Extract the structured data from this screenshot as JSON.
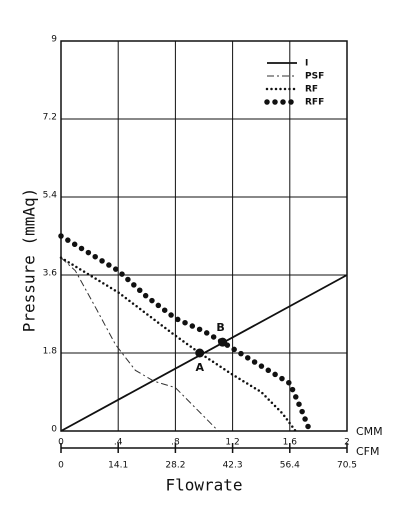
{
  "chart_data": {
    "type": "line",
    "ylabel": "Pressure (mmAq)",
    "xlabel": "Flowrate",
    "xunit": "CMM",
    "x2unit": "CFM",
    "xlim": [
      0,
      2
    ],
    "xticks": [
      0,
      {
        "value": 0.4,
        "label": ".4"
      },
      {
        "value": 0.8,
        "label": ".8"
      },
      1.2,
      1.6,
      2
    ],
    "x2lim": [
      0,
      70.5
    ],
    "x2ticks": [
      0,
      14.1,
      28.2,
      42.3,
      56.4,
      70.5
    ],
    "ylim": [
      0,
      9
    ],
    "yticks": [
      0,
      1.8,
      3.6,
      5.4,
      7.2,
      9
    ],
    "grid": true,
    "legend": "upper right",
    "series": [
      {
        "name": "I",
        "color": "#111111",
        "line_style": "solid",
        "x": [
          0,
          2
        ],
        "values": [
          0,
          3.6
        ]
      },
      {
        "name": "PSF",
        "color": "#333333",
        "line_style": "dashdot",
        "x": [
          0,
          0.1,
          0.25,
          0.38,
          0.52,
          0.65,
          0.8,
          0.95,
          1.1
        ],
        "values": [
          4.0,
          3.7,
          2.8,
          2.0,
          1.4,
          1.15,
          1.0,
          0.5,
          0
        ]
      },
      {
        "name": "RF",
        "color": "#111111",
        "line_style": "dotted",
        "x": [
          0,
          0.2,
          0.4,
          0.6,
          0.8,
          0.97,
          1.2,
          1.4,
          1.55,
          1.64
        ],
        "values": [
          4.0,
          3.6,
          3.2,
          2.7,
          2.2,
          1.8,
          1.3,
          0.9,
          0.4,
          0
        ]
      },
      {
        "name": "RFF",
        "color": "#111111",
        "line_style": "bigdotted",
        "x": [
          0,
          0.2,
          0.4,
          0.6,
          0.8,
          1.0,
          1.13,
          1.3,
          1.45,
          1.6,
          1.68,
          1.74
        ],
        "values": [
          4.5,
          4.1,
          3.7,
          3.1,
          2.6,
          2.3,
          2.05,
          1.7,
          1.4,
          1.1,
          0.5,
          0
        ]
      }
    ],
    "annotations": [
      {
        "text": "A",
        "x": 0.97,
        "y": 1.8
      },
      {
        "text": "B",
        "x": 1.13,
        "y": 2.05
      }
    ]
  }
}
